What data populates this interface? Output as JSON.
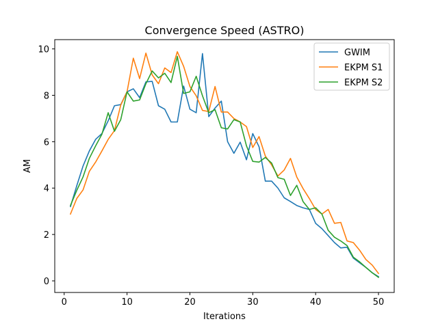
{
  "chart_data": {
    "type": "line",
    "title": "Convergence Speed (ASTRO)",
    "xlabel": "Iterations",
    "ylabel": "AM",
    "xlim": [
      -1.5,
      52.5
    ],
    "ylim": [
      -0.5,
      10.4
    ],
    "xticks": [
      0,
      10,
      20,
      30,
      40,
      50
    ],
    "yticks": [
      0,
      2,
      4,
      6,
      8,
      10
    ],
    "grid": false,
    "legend_position": "top-right",
    "x": [
      1,
      2,
      3,
      4,
      5,
      6,
      7,
      8,
      9,
      10,
      11,
      12,
      13,
      14,
      15,
      16,
      17,
      18,
      19,
      20,
      21,
      22,
      23,
      24,
      25,
      26,
      27,
      28,
      29,
      30,
      31,
      32,
      33,
      34,
      35,
      36,
      37,
      38,
      39,
      40,
      41,
      42,
      43,
      44,
      45,
      46,
      47,
      48,
      49,
      50
    ],
    "series": [
      {
        "name": "GWIM",
        "color": "#1f77b4",
        "values": [
          3.2,
          4.1,
          4.95,
          5.6,
          6.1,
          6.35,
          6.9,
          7.55,
          7.6,
          8.15,
          8.28,
          7.9,
          8.58,
          8.6,
          7.55,
          7.4,
          6.85,
          6.85,
          8.4,
          7.4,
          7.25,
          9.8,
          7.08,
          7.45,
          7.75,
          6.0,
          5.5,
          5.98,
          5.22,
          6.35,
          5.78,
          4.3,
          4.3,
          4.0,
          3.58,
          3.42,
          3.25,
          3.15,
          3.08,
          2.48,
          2.25,
          1.95,
          1.65,
          1.42,
          1.45,
          0.98,
          0.78,
          0.58,
          0.35,
          0.18
        ]
      },
      {
        "name": "EKPM S1",
        "color": "#ff7f0e",
        "values": [
          2.88,
          3.55,
          3.92,
          4.72,
          5.12,
          5.6,
          6.1,
          6.48,
          7.58,
          8.15,
          9.6,
          8.72,
          9.82,
          8.88,
          8.5,
          9.18,
          8.98,
          9.88,
          9.25,
          8.38,
          7.98,
          7.35,
          7.3,
          8.38,
          7.28,
          7.28,
          7.0,
          6.85,
          6.65,
          5.75,
          6.22,
          5.38,
          5.0,
          4.52,
          4.78,
          5.28,
          4.48,
          3.98,
          3.55,
          3.08,
          2.88,
          3.08,
          2.48,
          2.52,
          1.72,
          1.65,
          1.32,
          0.92,
          0.68,
          0.32
        ]
      },
      {
        "name": "EKPM S2",
        "color": "#2ca02c",
        "values": [
          3.25,
          3.9,
          4.48,
          5.28,
          5.82,
          6.32,
          7.25,
          6.45,
          6.95,
          8.15,
          7.75,
          7.8,
          8.5,
          9.05,
          8.75,
          8.95,
          8.55,
          9.68,
          8.08,
          8.15,
          8.82,
          7.98,
          7.25,
          7.38,
          6.6,
          6.55,
          6.95,
          6.85,
          5.82,
          5.15,
          5.12,
          5.32,
          5.08,
          4.45,
          4.38,
          3.68,
          4.12,
          3.42,
          3.08,
          3.15,
          2.88,
          2.18,
          1.88,
          1.72,
          1.52,
          1.02,
          0.82,
          0.58,
          0.35,
          0.15
        ]
      }
    ]
  }
}
